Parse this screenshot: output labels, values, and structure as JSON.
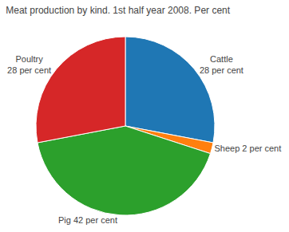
{
  "chart_data": {
    "type": "pie",
    "title": "Meat production by kind. 1st half year 2008. Per cent",
    "categories": [
      "Cattle\n28 per cent",
      "Sheep 2 per cent",
      "Pig 42 per cent",
      "Poultry\n28 per cent"
    ],
    "values": [
      28,
      2,
      42,
      28
    ]
  }
}
